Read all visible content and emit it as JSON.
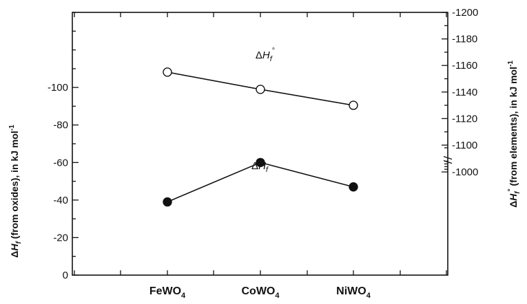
{
  "chart_data": {
    "type": "line",
    "categories": [
      "FeWO",
      "CoWO",
      "NiWO"
    ],
    "category_subscript": "4",
    "left_axis": {
      "label": "ΔHf (from oxides), in kJ mol-1",
      "ylim": [
        0,
        -140
      ],
      "ticks": [
        0,
        -20,
        -40,
        -60,
        -80,
        -100
      ],
      "tick_labels": [
        "0",
        "-20",
        "-40",
        "-60",
        "-80",
        "-100"
      ]
    },
    "right_axis": {
      "label": "ΔHf° (from elements), in kJ mol-1",
      "ticks": [
        -1000,
        -1100,
        -1120,
        -1140,
        -1160,
        -1180,
        -1200
      ],
      "tick_labels": [
        "-1000",
        "-1100",
        "-1120",
        "-1140",
        "-1160",
        "-1180",
        "-1200"
      ],
      "minor_ticks": [
        -1010,
        -1020,
        -1030,
        -1040,
        -1090,
        -1110,
        -1130,
        -1150,
        -1170,
        -1190
      ]
    },
    "series": [
      {
        "name": "ΔHf°",
        "axis": "right",
        "marker": "open-circle",
        "values": [
          -1155,
          -1142,
          -1130
        ]
      },
      {
        "name": "ΔHf",
        "axis": "left",
        "marker": "filled-circle",
        "values": [
          -39,
          -60,
          -47
        ]
      }
    ],
    "grid": false
  }
}
